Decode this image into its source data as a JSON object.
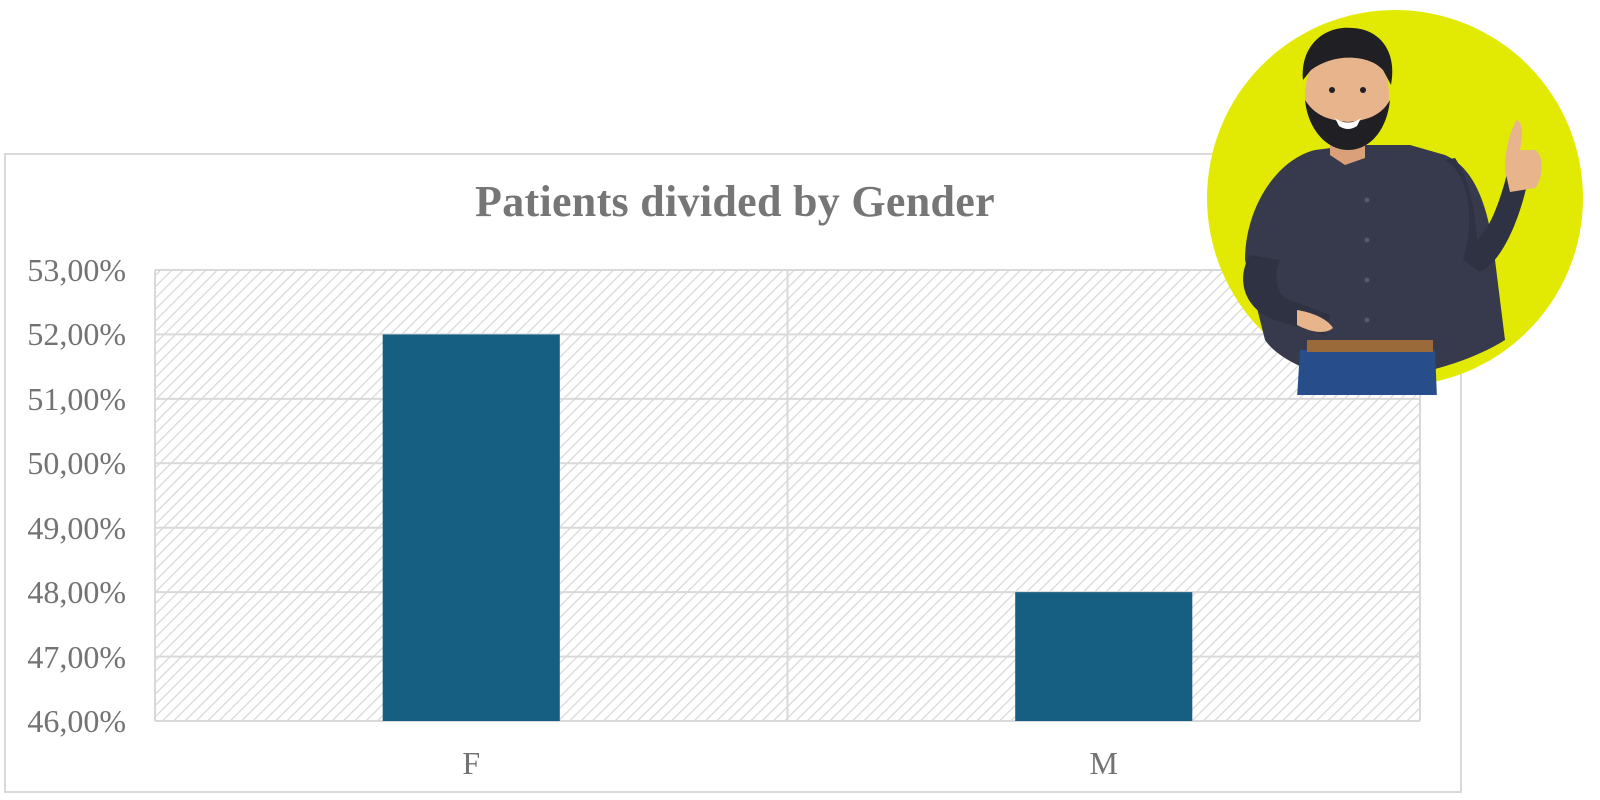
{
  "chart_data": {
    "type": "bar",
    "title": "Patients divided by Gender",
    "categories": [
      "F",
      "M"
    ],
    "values": [
      52.0,
      48.0
    ],
    "ylim": [
      46,
      53
    ],
    "yticks": [
      "46,00%",
      "47,00%",
      "48,00%",
      "49,00%",
      "50,00%",
      "51,00%",
      "52,00%",
      "53,00%"
    ],
    "xlabel": "",
    "ylabel": "",
    "grid": true,
    "legend": "none"
  },
  "colors": {
    "bar": "#175F82",
    "grid": "#d9d9d9",
    "hatch": "#cfcfcf",
    "mascot_circle": "#E2EA04",
    "text": "#737373"
  },
  "illustration": {
    "icon": "smiling-bearded-man-thumbs-up"
  }
}
